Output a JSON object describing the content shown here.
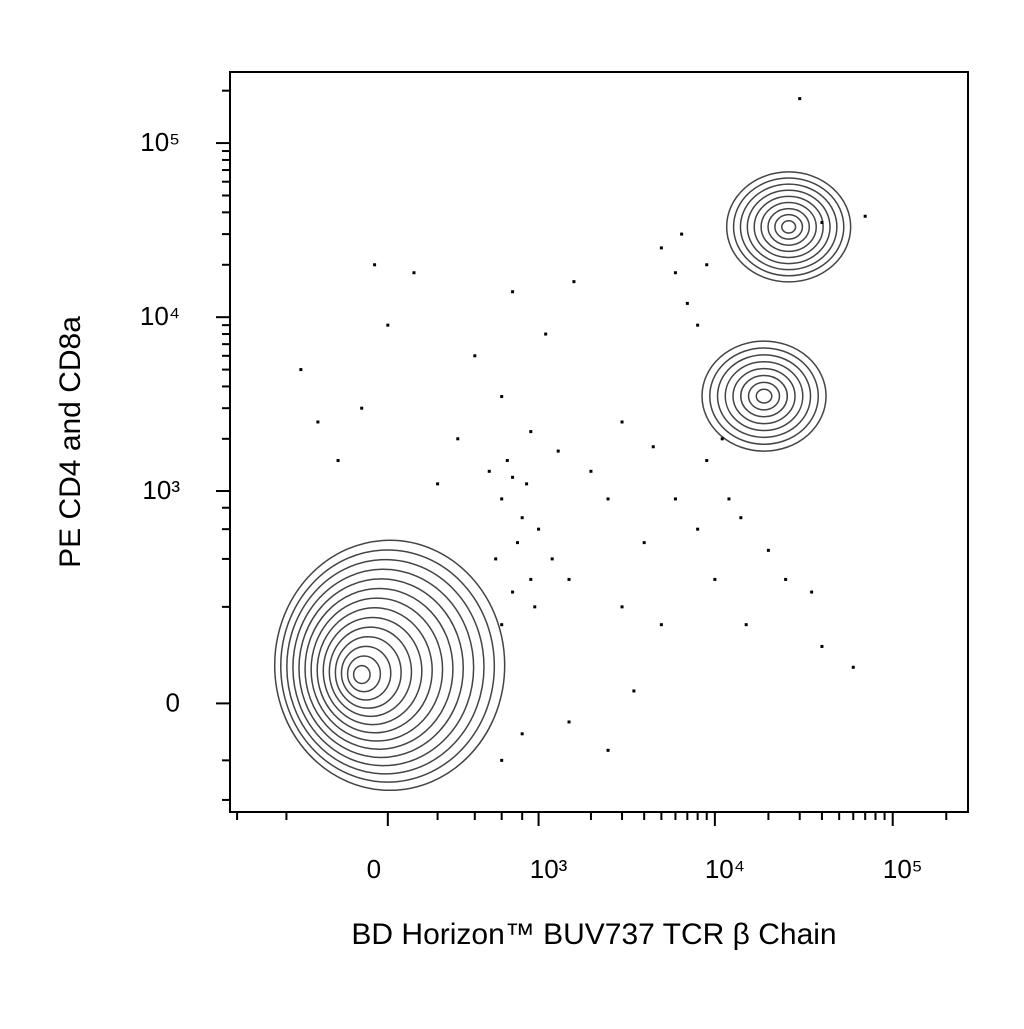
{
  "chart_data": {
    "type": "contour",
    "xlabel": "BD Horizon™ BUV737 TCR β Chain",
    "ylabel": "PE CD4 and CD8a",
    "xscale": "biexponential",
    "yscale": "biexponential",
    "xlim": [
      -1100,
      265000
    ],
    "ylim": [
      -240,
      256000
    ],
    "xticks": [
      0,
      {
        "value": 1000,
        "label": "10³"
      },
      {
        "value": 10000,
        "label": "10⁴"
      },
      {
        "value": 100000,
        "label": "10⁵"
      }
    ],
    "yticks": [
      0,
      {
        "value": 1000,
        "label": "10³"
      },
      {
        "value": 10000,
        "label": "10⁴"
      },
      {
        "value": 100000,
        "label": "10⁵"
      }
    ],
    "xminorticks": [
      -1000,
      -500,
      200,
      400,
      600,
      800,
      2000,
      3000,
      4000,
      5000,
      6000,
      7000,
      8000,
      9000,
      20000,
      30000,
      40000,
      50000,
      60000,
      70000,
      80000,
      90000,
      200000
    ],
    "yminorticks": [
      -200,
      -100,
      200,
      400,
      600,
      800,
      2000,
      3000,
      4000,
      5000,
      6000,
      7000,
      8000,
      9000,
      20000,
      30000,
      40000,
      50000,
      60000,
      70000,
      80000,
      90000,
      200000
    ],
    "color": "#000000",
    "populations": {
      "x": [
        -108,
        26000,
        18900
      ],
      "y": [
        46,
        33000,
        3520
      ]
    },
    "points": {
      "x": [
        600,
        700,
        800,
        550,
        900,
        650,
        750,
        850,
        500,
        950,
        700,
        600,
        1000,
        1200,
        1500,
        -400,
        -200,
        -100,
        0,
        100,
        300,
        -300,
        200,
        -50,
        400,
        700,
        1100,
        1600,
        600,
        900,
        1300,
        2000,
        2500,
        3000,
        8000,
        10000,
        12000,
        15000,
        20000,
        9000,
        11000,
        14000,
        25000,
        35000,
        40000,
        60000,
        5000,
        6000,
        7000,
        8000,
        6500,
        9000,
        40000,
        70000,
        30000,
        3000,
        4000,
        5000,
        6000,
        4500,
        3500,
        600,
        800,
        1500,
        2500
      ],
      "y": [
        900,
        1200,
        700,
        400,
        300,
        1500,
        500,
        1100,
        1300,
        200,
        250,
        150,
        600,
        400,
        300,
        5000,
        1500,
        3000,
        9000,
        18000,
        2000,
        2500,
        1100,
        20000,
        6000,
        14000,
        8000,
        16000,
        3500,
        2200,
        1700,
        1300,
        900,
        2500,
        600,
        300,
        900,
        150,
        450,
        1500,
        2000,
        700,
        300,
        250,
        100,
        60,
        25000,
        18000,
        12000,
        9000,
        30000,
        20000,
        35000,
        38000,
        180000,
        200,
        500,
        150,
        900,
        1800,
        20,
        -100,
        -50,
        -30,
        -80
      ]
    }
  }
}
